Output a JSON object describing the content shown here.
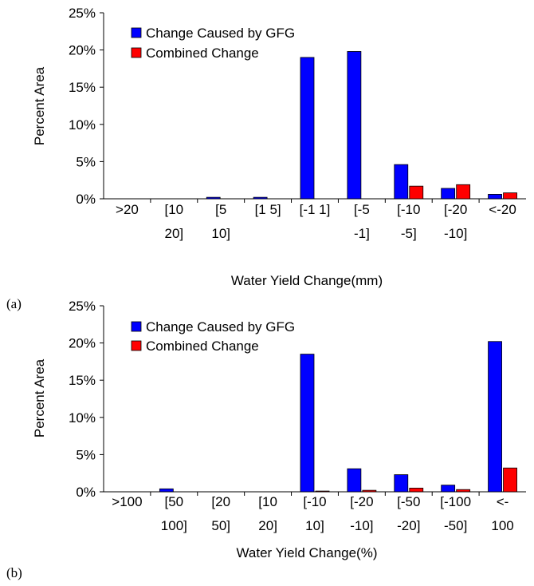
{
  "colors": {
    "gfg": "#0000ff",
    "combined": "#ff0000"
  },
  "chart_data": [
    {
      "panel_label": "(a)",
      "type": "bar",
      "xlabel": "Water Yield Change(mm)",
      "ylabel": "Percent Area",
      "ylim": [
        0,
        25
      ],
      "yticks": [
        "0%",
        "5%",
        "10%",
        "15%",
        "20%",
        "25%"
      ],
      "categories": [
        [
          ">20"
        ],
        [
          "[10",
          "20]"
        ],
        [
          "[5",
          "10]"
        ],
        [
          "[1 5]"
        ],
        [
          "[-1 1]"
        ],
        [
          "[-5",
          "-1]"
        ],
        [
          "[-10",
          "-5]"
        ],
        [
          "[-20",
          "-10]"
        ],
        [
          "<-20"
        ]
      ],
      "series": [
        {
          "name": "Change Caused by GFG",
          "values": [
            0,
            0,
            0.2,
            0.2,
            19.0,
            19.8,
            4.6,
            1.4,
            0.6
          ]
        },
        {
          "name": "Combined Change",
          "values": [
            0,
            0,
            0,
            0,
            0,
            0,
            1.7,
            1.9,
            0.8
          ]
        }
      ],
      "legend": "top-left"
    },
    {
      "panel_label": "(b)",
      "type": "bar",
      "xlabel": "Water Yield Change(%)",
      "ylabel": "Percent Area",
      "ylim": [
        0,
        25
      ],
      "yticks": [
        "0%",
        "5%",
        "10%",
        "15%",
        "20%",
        "25%"
      ],
      "categories": [
        [
          ">100"
        ],
        [
          "[50",
          "100]"
        ],
        [
          "[20",
          "50]"
        ],
        [
          "[10",
          "20]"
        ],
        [
          "[-10",
          "10]"
        ],
        [
          "[-20",
          "-10]"
        ],
        [
          "[-50",
          "-20]"
        ],
        [
          "[-100",
          "-50]"
        ],
        [
          "<-",
          "100"
        ]
      ],
      "series": [
        {
          "name": "Change Caused by GFG",
          "values": [
            0,
            0.4,
            0,
            0,
            18.5,
            3.1,
            2.3,
            0.9,
            20.2
          ]
        },
        {
          "name": "Combined Change",
          "values": [
            0,
            0,
            0,
            0,
            0.1,
            0.2,
            0.5,
            0.3,
            3.2
          ]
        }
      ],
      "legend": "top-left"
    }
  ]
}
